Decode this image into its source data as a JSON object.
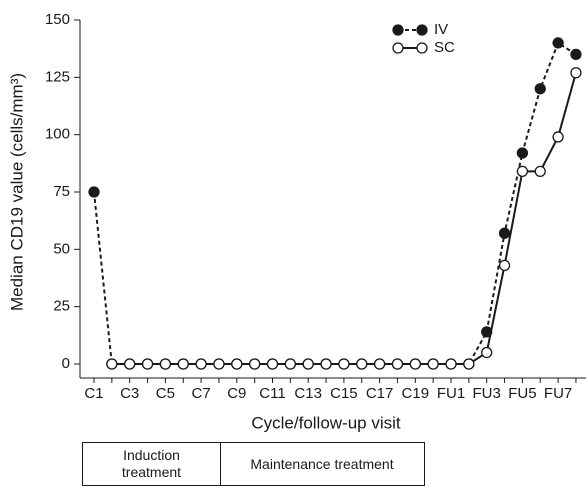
{
  "chart_data": {
    "type": "line",
    "y_label": "Median CD19 value (cells/mm³)",
    "x_label": "Cycle/follow-up visit",
    "categories": [
      "C1",
      null,
      "C3",
      null,
      "C5",
      null,
      "C7",
      null,
      "C9",
      null,
      "C11",
      null,
      "C13",
      null,
      "C15",
      null,
      "C17",
      null,
      "C19",
      null,
      "FU1",
      null,
      "FU3",
      null,
      "FU5",
      null,
      "FU7",
      null
    ],
    "series": [
      {
        "name": "IV",
        "color": "#1a1a1a",
        "linestyle": "dashed",
        "marker": "filled",
        "values": [
          75,
          0,
          0,
          0,
          0,
          0,
          0,
          0,
          0,
          0,
          0,
          0,
          0,
          0,
          0,
          0,
          0,
          0,
          0,
          0,
          0,
          0,
          14,
          57,
          92,
          120,
          140,
          135
        ]
      },
      {
        "name": "SC",
        "color": "#1a1a1a",
        "linestyle": "solid",
        "marker": "hollow",
        "values": [
          null,
          0,
          0,
          0,
          0,
          0,
          0,
          0,
          0,
          0,
          0,
          0,
          0,
          0,
          0,
          0,
          0,
          0,
          0,
          0,
          0,
          0,
          5,
          43,
          84,
          84,
          99,
          127
        ]
      }
    ],
    "ylim": [
      0,
      150
    ],
    "yticks": [
      0,
      25,
      50,
      75,
      100,
      125,
      150
    ],
    "grid": false,
    "legend": "upper right"
  },
  "phase_table": {
    "cells": [
      "Induction treatment",
      "Maintenance treatment"
    ]
  }
}
